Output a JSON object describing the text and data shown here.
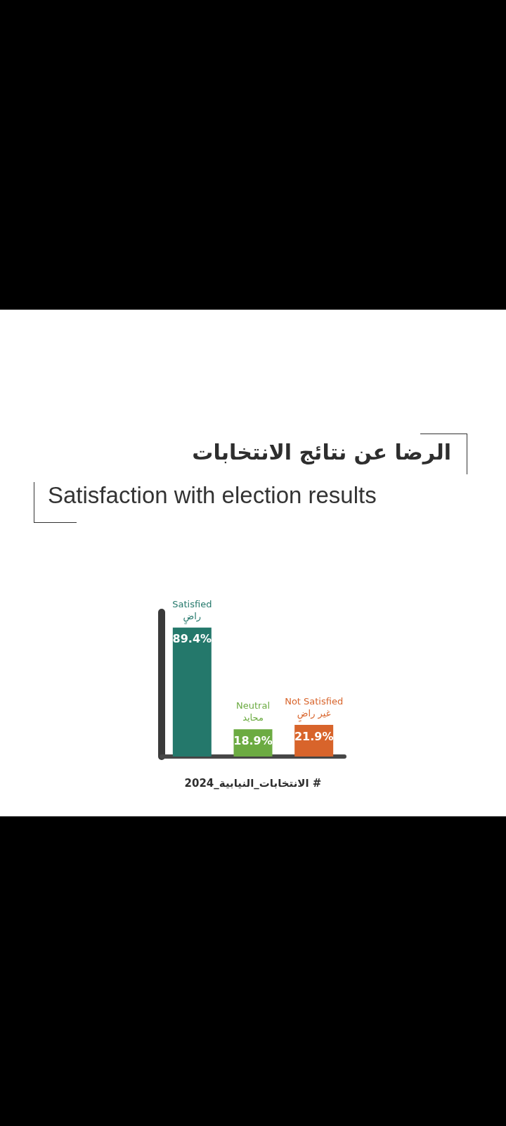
{
  "chart_data": {
    "type": "bar",
    "title": "الرضا عن نتائج الانتخابات",
    "subtitle": "Satisfaction with election results",
    "categories": [
      "Satisfied\nراضٍ",
      "Neutral\nمحايد",
      "Not Satisfied\nغير راضٍ"
    ],
    "values": [
      89.4,
      18.9,
      21.9
    ],
    "colors": [
      "#24786b",
      "#6cab42",
      "#d8642b"
    ],
    "value_labels": [
      "89.4%",
      "18.9%",
      "21.9%"
    ],
    "annotations": [
      "# الانتخابات_النيابية_2024"
    ]
  }
}
